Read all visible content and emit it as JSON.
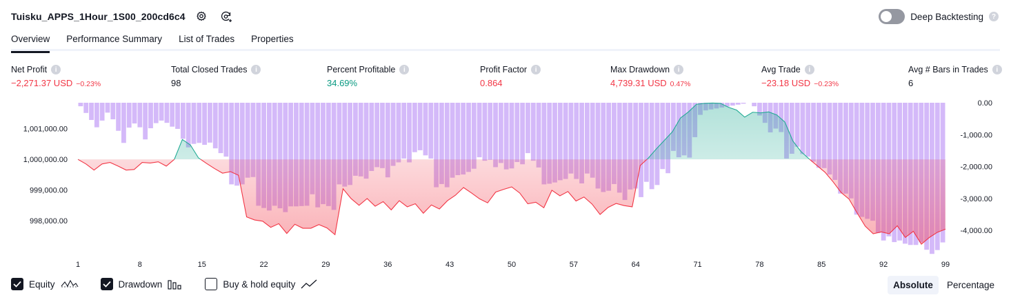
{
  "header": {
    "strategy_name": "Tuisku_APPS_1Hour_1S00_200cd6c4",
    "deep_backtesting_label": "Deep Backtesting",
    "help_glyph": "?"
  },
  "tabs": [
    {
      "label": "Overview",
      "active": true
    },
    {
      "label": "Performance Summary",
      "active": false
    },
    {
      "label": "List of Trades",
      "active": false
    },
    {
      "label": "Properties",
      "active": false
    }
  ],
  "metrics": {
    "info_glyph": "i",
    "net_profit": {
      "label": "Net Profit",
      "value": "−2,271.37 USD",
      "sub": "−0.23%"
    },
    "total_closed_trades": {
      "label": "Total Closed Trades",
      "value": "98"
    },
    "percent_profitable": {
      "label": "Percent Profitable",
      "value": "34.69%"
    },
    "profit_factor": {
      "label": "Profit Factor",
      "value": "0.864"
    },
    "max_drawdown": {
      "label": "Max Drawdown",
      "value": "4,739.31 USD",
      "sub": "0.47%"
    },
    "avg_trade": {
      "label": "Avg Trade",
      "value": "−23.18 USD",
      "sub": "−0.23%"
    },
    "avg_bars": {
      "label": "Avg # Bars in Trades",
      "value": "6"
    }
  },
  "colors": {
    "positive": "#089981",
    "negative": "#f23645",
    "drawdown_bar": "#c9a7f7",
    "equity_line_up": "#22ab94",
    "equity_line_down": "#f23645"
  },
  "chart_data": {
    "type": "area",
    "x_ticks": [
      "1",
      "8",
      "15",
      "22",
      "29",
      "36",
      "43",
      "50",
      "57",
      "64",
      "71",
      "78",
      "85",
      "92",
      "99"
    ],
    "x_range": [
      1,
      99
    ],
    "left_axis": {
      "ticks": [
        "1,001,000.00",
        "1,000,000.00",
        "999,000.00",
        "998,000.00"
      ],
      "tick_values": [
        1001000,
        1000000,
        999000,
        998000
      ],
      "range": [
        996850,
        1001850
      ]
    },
    "right_axis": {
      "ticks": [
        "0.00",
        "-1,000.00",
        "-2,000.00",
        "-3,000.00",
        "-4,000.00"
      ],
      "tick_values": [
        0,
        -1000,
        -2000,
        -3000,
        -4000
      ],
      "range": [
        -4800,
        0
      ]
    },
    "baseline": 1000000,
    "series": [
      {
        "name": "Equity",
        "values": [
          1000000,
          999850,
          999650,
          999850,
          999900,
          999780,
          999650,
          999670,
          999900,
          999880,
          999920,
          999780,
          1000000,
          1000650,
          1000470,
          1000050,
          999870,
          999700,
          999550,
          999600,
          999480,
          998120,
          998020,
          997980,
          997780,
          997900,
          997580,
          997880,
          997750,
          997750,
          997870,
          997760,
          997540,
          999040,
          998720,
          998500,
          998720,
          998470,
          998620,
          998350,
          998650,
          998450,
          998550,
          998240,
          998510,
          998380,
          998650,
          998830,
          999080,
          998900,
          998710,
          998580,
          998930,
          999020,
          999100,
          998900,
          998550,
          998600,
          998420,
          998990,
          998810,
          998950,
          998640,
          998770,
          998540,
          998200,
          998430,
          998560,
          998490,
          998450,
          999800,
          1000040,
          1000340,
          1000620,
          1000900,
          1001350,
          1001550,
          1001800,
          1001830,
          1001840,
          1001830,
          1001700,
          1001610,
          1001380,
          1001540,
          1001520,
          1001550,
          1001450,
          1001220,
          1000600,
          1000260,
          1000020,
          999800,
          999580,
          999270,
          998920,
          998700,
          998250,
          997820,
          997570,
          997630,
          997570,
          997830,
          997450,
          997650,
          997230,
          997450,
          997620,
          997720
        ]
      },
      {
        "name": "Drawdown",
        "values": [
          -110,
          -320,
          -540,
          -770,
          -560,
          -310,
          -520,
          -880,
          -1260,
          -780,
          -650,
          -770,
          -1150,
          -800,
          -640,
          -560,
          -630,
          -750,
          -820,
          -1130,
          -1400,
          -1290,
          -1260,
          -1320,
          -1250,
          -1430,
          -1580,
          -1690,
          -2560,
          -2600,
          -2560,
          -2350,
          -2330,
          -3230,
          -3300,
          -3380,
          -3230,
          -3310,
          -3430,
          -3250,
          -3250,
          -3240,
          -3230,
          -2870,
          -3280,
          -3180,
          -3240,
          -3360,
          -2560,
          -2630,
          -2580,
          -2290,
          -2310,
          -2380,
          -2140,
          -2020,
          -2050,
          -2340,
          -1980,
          -1870,
          -1750,
          -1870,
          -1550,
          -1490,
          -1650,
          -1750,
          -2650,
          -2550,
          -2650,
          -2350,
          -2270,
          -2250,
          -2170,
          -2070,
          -1710,
          -1820,
          -1790,
          -2020,
          -1890,
          -2090,
          -2060,
          -1860,
          -1930,
          -1580,
          -1820,
          -2030,
          -2560,
          -2540,
          -2500,
          -2430,
          -2390,
          -2220,
          -2390,
          -2530,
          -2220,
          -2350,
          -2690,
          -2800,
          -2760,
          -2550,
          -2820,
          -3050,
          -2720,
          -2690,
          -2960,
          -2480,
          -2710,
          -2580,
          -2080,
          -2210,
          -1510,
          -1710,
          -1650,
          -1720,
          -1080,
          -380,
          -240,
          -210,
          -180,
          -150,
          -120,
          -90,
          -60,
          -30,
          0,
          -110,
          -400,
          -630,
          -930,
          -810,
          -920,
          -1750,
          -1600,
          -1380,
          -1610,
          -1690,
          -1850,
          -2040,
          -2050,
          -2250,
          -2420,
          -2850,
          -2850,
          -3000,
          -3510,
          -3580,
          -3640,
          -3700,
          -4090,
          -4320,
          -4190,
          -4370,
          -4320,
          -4420,
          -4460,
          -4460,
          -4380,
          -4610,
          -4740,
          -4620,
          -4380
        ]
      }
    ],
    "legend": [
      "Equity",
      "Drawdown",
      "Buy & hold equity"
    ]
  },
  "legend": {
    "equity": {
      "label": "Equity",
      "checked": true
    },
    "drawdown": {
      "label": "Drawdown",
      "checked": true
    },
    "buy_hold": {
      "label": "Buy & hold equity",
      "checked": false
    }
  },
  "mode": {
    "absolute": "Absolute",
    "percentage": "Percentage",
    "active": "absolute"
  }
}
